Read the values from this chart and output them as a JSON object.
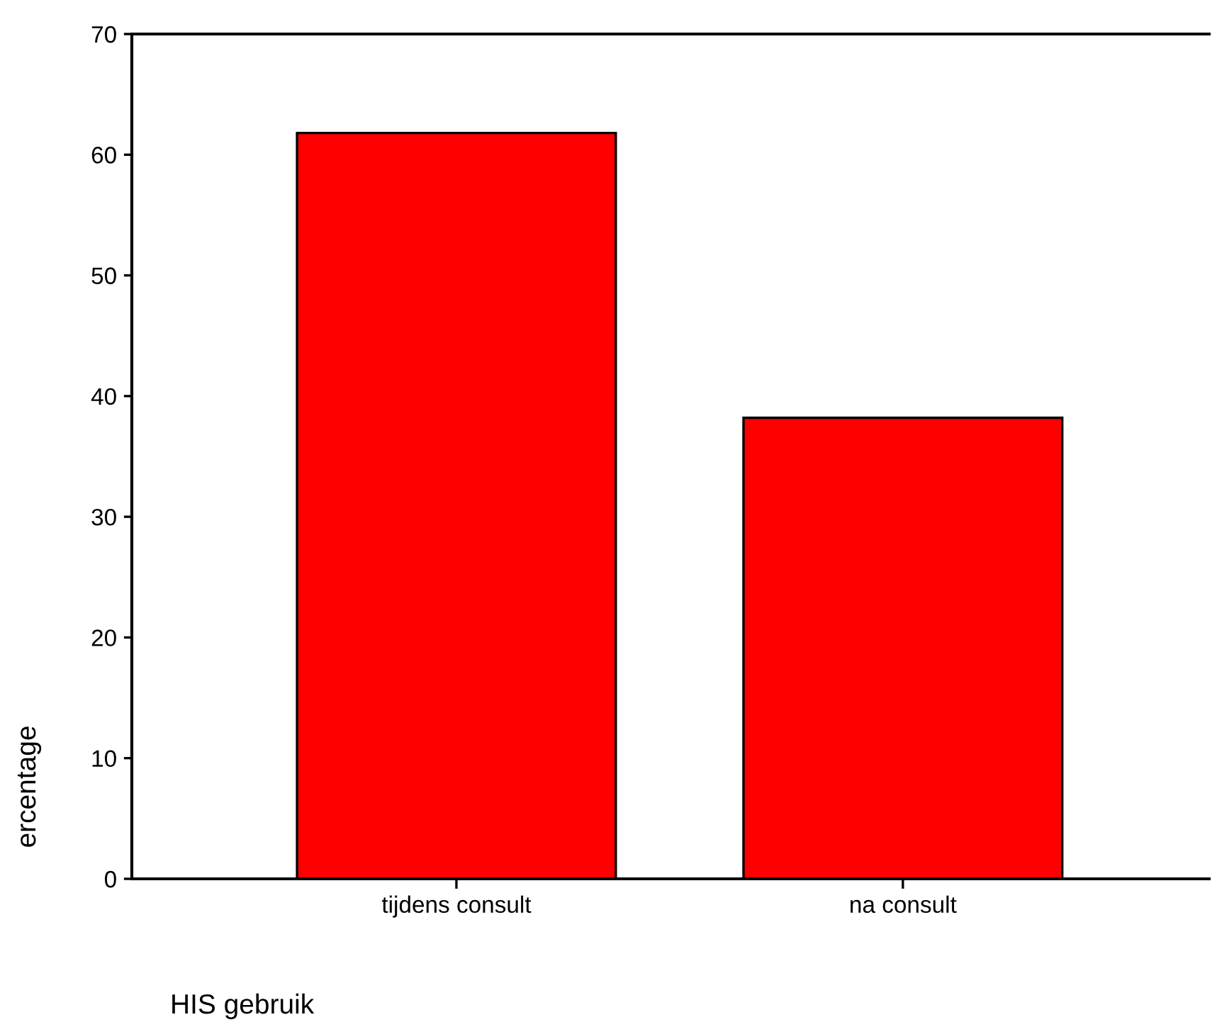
{
  "chart_data": {
    "type": "bar",
    "xlabel": "HIS gebruik",
    "ylabel": "ercentage",
    "categories": [
      "tijdens consult",
      "na consult"
    ],
    "values": [
      61.8,
      38.2
    ],
    "color": "#ff0000",
    "ylim": [
      0,
      70
    ],
    "yticks": [
      0,
      10,
      20,
      30,
      40,
      50,
      60,
      70
    ],
    "grid": false
  }
}
